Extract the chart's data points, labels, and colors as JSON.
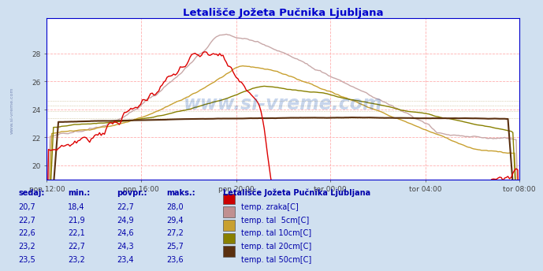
{
  "title": "Letališče Jožeta Pučnika Ljubljana",
  "bg_color": "#d0e0f0",
  "plot_bg_color": "#ffffff",
  "grid_color_h": "#ffb0b0",
  "grid_color_v": "#ffb0b0",
  "title_color": "#0000cc",
  "text_color": "#0000aa",
  "ylim": [
    19.0,
    30.5
  ],
  "ytick_vals": [
    20,
    22,
    24,
    26,
    28
  ],
  "xtick_labels": [
    "pon 12:00",
    "pon 16:00",
    "pon 20:00",
    "tor 00:00",
    "tor 04:00",
    "tor 08:00"
  ],
  "n_points": 288,
  "line_colors": [
    "#dd0000",
    "#c8a8a8",
    "#c8a030",
    "#888000",
    "#5a3010"
  ],
  "line_widths": [
    1.0,
    1.0,
    1.0,
    1.0,
    1.5
  ],
  "legend_title": "Letališče Jožeta Pučnika Ljubljana",
  "legend_labels": [
    "temp. zraka[C]",
    "temp. tal  5cm[C]",
    "temp. tal 10cm[C]",
    "temp. tal 20cm[C]",
    "temp. tal 50cm[C]"
  ],
  "legend_colors": [
    "#cc0000",
    "#c09090",
    "#c8a030",
    "#888000",
    "#5a3010"
  ],
  "table_headers": [
    "sedaj:",
    "min.:",
    "povpr.:",
    "maks.:"
  ],
  "table_data": [
    [
      "20,7",
      "18,4",
      "22,7",
      "28,0"
    ],
    [
      "22,7",
      "21,9",
      "24,9",
      "29,4"
    ],
    [
      "22,6",
      "22,1",
      "24,6",
      "27,2"
    ],
    [
      "23,2",
      "22,7",
      "24,3",
      "25,7"
    ],
    [
      "23,5",
      "23,2",
      "23,4",
      "23,6"
    ]
  ],
  "watermark": "www.si-vreme.com",
  "watermark_color": "#0044aa",
  "watermark_alpha": 0.22,
  "side_text": "www.si-vreme.com"
}
